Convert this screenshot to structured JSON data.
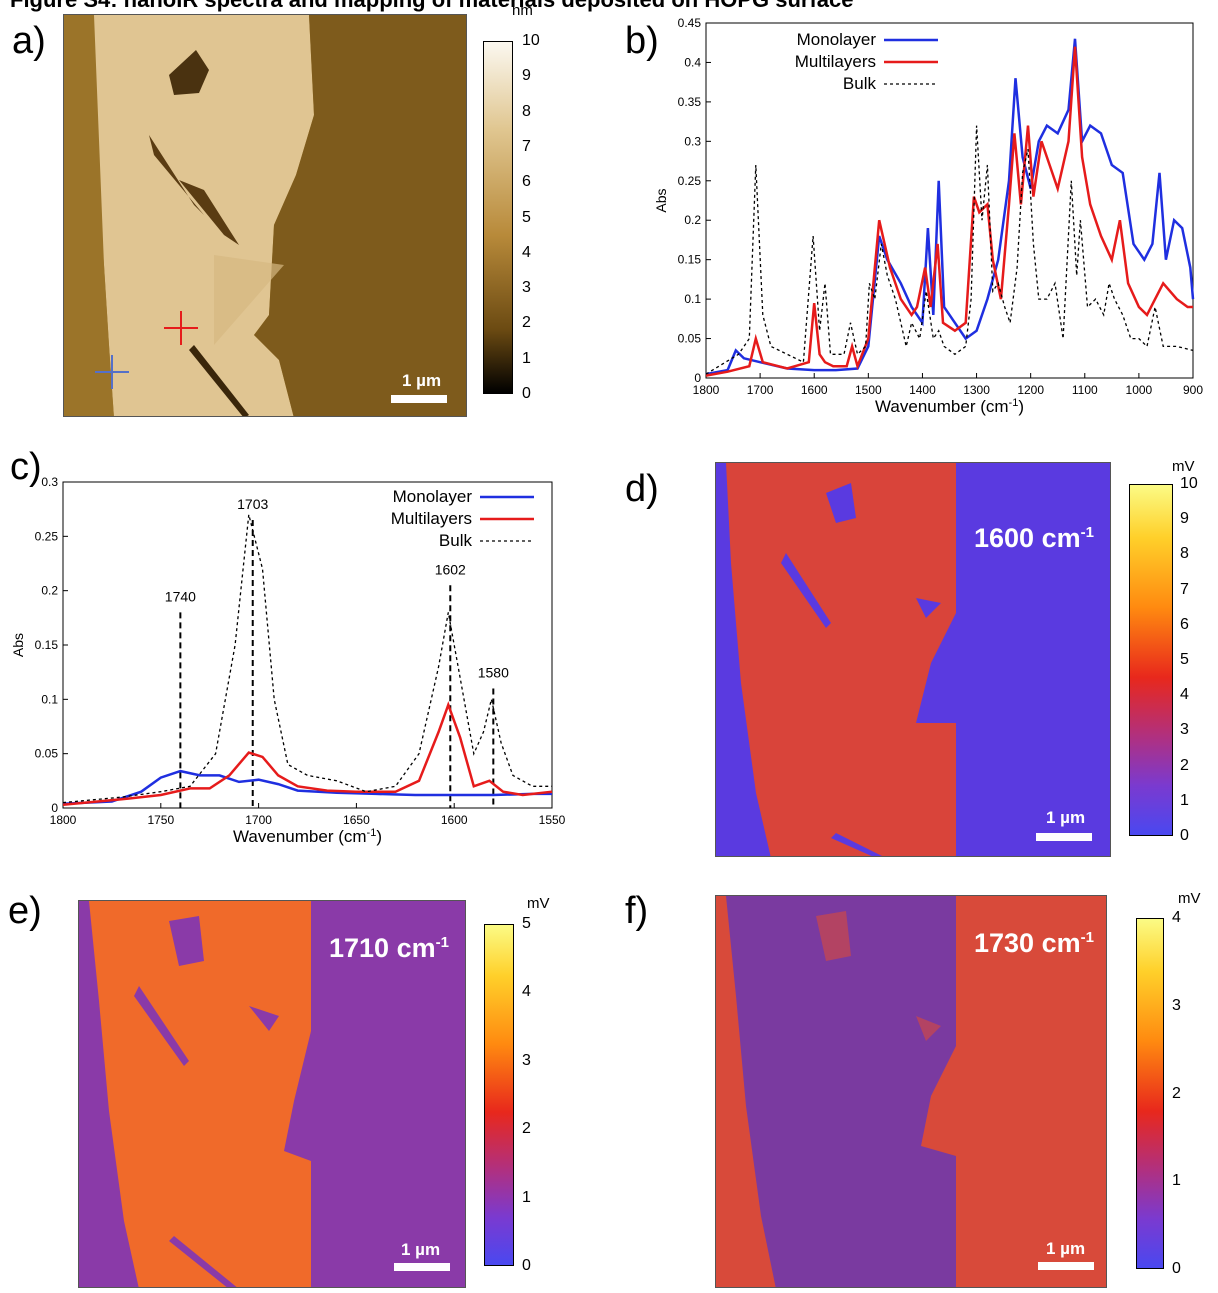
{
  "caption": "Figure S4: nanoIR spectra and mapping of materials deposited on HOPG surface",
  "panels": {
    "a": {
      "label": "a)",
      "scalebar": "1 µm",
      "colorbar_unit": "nm",
      "colorbar_ticks": [
        "10",
        "9",
        "8",
        "7",
        "6",
        "5",
        "4",
        "3",
        "2",
        "1",
        "0"
      ],
      "colors": {
        "high": "#f8f4ea",
        "mid": "#b88a3a",
        "low": "#000000"
      }
    },
    "d": {
      "label": "d)",
      "wavenumber": "1600 cm",
      "sup": "-1",
      "scalebar": "1 µm",
      "colorbar_unit": "mV",
      "colorbar_ticks": [
        "10",
        "9",
        "8",
        "7",
        "6",
        "5",
        "4",
        "3",
        "2",
        "1",
        "0"
      ]
    },
    "e": {
      "label": "e)",
      "wavenumber": "1710 cm",
      "sup": "-1",
      "scalebar": "1 µm",
      "colorbar_unit": "mV",
      "colorbar_ticks": [
        "5",
        "4",
        "3",
        "2",
        "1",
        "0"
      ]
    },
    "f": {
      "label": "f)",
      "wavenumber": "1730 cm",
      "sup": "-1",
      "scalebar": "1 µm",
      "colorbar_unit": "mV",
      "colorbar_ticks": [
        "4",
        "3",
        "2",
        "1",
        "0"
      ]
    }
  },
  "chart_data": [
    {
      "panel": "b",
      "label": "b)",
      "type": "line",
      "xlabel": "Wavenumber (cm",
      "xlabel_sup": "-1",
      "xlabel_end": ")",
      "ylabel": "Abs",
      "xlim": [
        1800,
        900
      ],
      "ylim": [
        0,
        0.45
      ],
      "xticks": [
        "1800",
        "1700",
        "1600",
        "1500",
        "1400",
        "1300",
        "1200",
        "1100",
        "1000",
        "900"
      ],
      "yticks": [
        "0",
        "0.05",
        "0.1",
        "0.15",
        "0.2",
        "0.25",
        "0.3",
        "0.35",
        "0.4",
        "0.45"
      ],
      "legend": "top-left",
      "series": [
        {
          "name": "Monolayer",
          "color": "#1f2fe0",
          "dash": "",
          "points": [
            [
              1800,
              0.005
            ],
            [
              1760,
              0.01
            ],
            [
              1745,
              0.035
            ],
            [
              1730,
              0.025
            ],
            [
              1700,
              0.02
            ],
            [
              1650,
              0.012
            ],
            [
              1600,
              0.01
            ],
            [
              1560,
              0.01
            ],
            [
              1520,
              0.012
            ],
            [
              1500,
              0.04
            ],
            [
              1480,
              0.18
            ],
            [
              1465,
              0.15
            ],
            [
              1440,
              0.12
            ],
            [
              1420,
              0.09
            ],
            [
              1400,
              0.07
            ],
            [
              1390,
              0.19
            ],
            [
              1380,
              0.08
            ],
            [
              1370,
              0.25
            ],
            [
              1360,
              0.09
            ],
            [
              1340,
              0.07
            ],
            [
              1320,
              0.05
            ],
            [
              1300,
              0.06
            ],
            [
              1280,
              0.1
            ],
            [
              1260,
              0.15
            ],
            [
              1240,
              0.25
            ],
            [
              1228,
              0.38
            ],
            [
              1215,
              0.28
            ],
            [
              1200,
              0.24
            ],
            [
              1185,
              0.3
            ],
            [
              1170,
              0.32
            ],
            [
              1150,
              0.31
            ],
            [
              1130,
              0.34
            ],
            [
              1118,
              0.43
            ],
            [
              1105,
              0.3
            ],
            [
              1090,
              0.32
            ],
            [
              1070,
              0.31
            ],
            [
              1050,
              0.27
            ],
            [
              1030,
              0.26
            ],
            [
              1010,
              0.17
            ],
            [
              990,
              0.15
            ],
            [
              975,
              0.17
            ],
            [
              962,
              0.26
            ],
            [
              950,
              0.15
            ],
            [
              935,
              0.2
            ],
            [
              920,
              0.19
            ],
            [
              905,
              0.14
            ],
            [
              900,
              0.1
            ]
          ]
        },
        {
          "name": "Multilayers",
          "color": "#e61b1b",
          "dash": "",
          "points": [
            [
              1800,
              0.003
            ],
            [
              1760,
              0.008
            ],
            [
              1720,
              0.015
            ],
            [
              1708,
              0.05
            ],
            [
              1695,
              0.02
            ],
            [
              1650,
              0.012
            ],
            [
              1610,
              0.02
            ],
            [
              1600,
              0.095
            ],
            [
              1590,
              0.03
            ],
            [
              1580,
              0.02
            ],
            [
              1565,
              0.015
            ],
            [
              1540,
              0.015
            ],
            [
              1530,
              0.04
            ],
            [
              1520,
              0.015
            ],
            [
              1500,
              0.05
            ],
            [
              1480,
              0.2
            ],
            [
              1460,
              0.14
            ],
            [
              1440,
              0.1
            ],
            [
              1420,
              0.08
            ],
            [
              1410,
              0.09
            ],
            [
              1395,
              0.14
            ],
            [
              1385,
              0.09
            ],
            [
              1372,
              0.17
            ],
            [
              1362,
              0.07
            ],
            [
              1340,
              0.06
            ],
            [
              1320,
              0.07
            ],
            [
              1305,
              0.23
            ],
            [
              1295,
              0.21
            ],
            [
              1280,
              0.22
            ],
            [
              1270,
              0.15
            ],
            [
              1255,
              0.1
            ],
            [
              1240,
              0.22
            ],
            [
              1230,
              0.31
            ],
            [
              1218,
              0.22
            ],
            [
              1205,
              0.32
            ],
            [
              1195,
              0.23
            ],
            [
              1180,
              0.3
            ],
            [
              1165,
              0.27
            ],
            [
              1150,
              0.24
            ],
            [
              1130,
              0.3
            ],
            [
              1118,
              0.42
            ],
            [
              1105,
              0.28
            ],
            [
              1090,
              0.22
            ],
            [
              1070,
              0.18
            ],
            [
              1050,
              0.15
            ],
            [
              1035,
              0.2
            ],
            [
              1020,
              0.12
            ],
            [
              1000,
              0.09
            ],
            [
              985,
              0.08
            ],
            [
              970,
              0.1
            ],
            [
              955,
              0.12
            ],
            [
              930,
              0.1
            ],
            [
              910,
              0.09
            ],
            [
              900,
              0.09
            ]
          ]
        },
        {
          "name": "Bulk",
          "color": "#000000",
          "dash": "3,3",
          "points": [
            [
              1800,
              0.005
            ],
            [
              1740,
              0.03
            ],
            [
              1720,
              0.05
            ],
            [
              1708,
              0.27
            ],
            [
              1695,
              0.08
            ],
            [
              1680,
              0.04
            ],
            [
              1650,
              0.03
            ],
            [
              1620,
              0.02
            ],
            [
              1602,
              0.18
            ],
            [
              1590,
              0.06
            ],
            [
              1580,
              0.12
            ],
            [
              1570,
              0.03
            ],
            [
              1545,
              0.03
            ],
            [
              1533,
              0.07
            ],
            [
              1520,
              0.03
            ],
            [
              1505,
              0.04
            ],
            [
              1498,
              0.12
            ],
            [
              1488,
              0.1
            ],
            [
              1476,
              0.17
            ],
            [
              1465,
              0.13
            ],
            [
              1450,
              0.1
            ],
            [
              1430,
              0.04
            ],
            [
              1420,
              0.07
            ],
            [
              1405,
              0.05
            ],
            [
              1393,
              0.11
            ],
            [
              1380,
              0.05
            ],
            [
              1370,
              0.06
            ],
            [
              1360,
              0.04
            ],
            [
              1340,
              0.03
            ],
            [
              1320,
              0.04
            ],
            [
              1310,
              0.1
            ],
            [
              1300,
              0.32
            ],
            [
              1290,
              0.2
            ],
            [
              1280,
              0.27
            ],
            [
              1270,
              0.11
            ],
            [
              1260,
              0.12
            ],
            [
              1248,
              0.09
            ],
            [
              1238,
              0.07
            ],
            [
              1225,
              0.14
            ],
            [
              1215,
              0.26
            ],
            [
              1205,
              0.29
            ],
            [
              1195,
              0.17
            ],
            [
              1185,
              0.1
            ],
            [
              1170,
              0.1
            ],
            [
              1155,
              0.12
            ],
            [
              1140,
              0.05
            ],
            [
              1125,
              0.25
            ],
            [
              1115,
              0.13
            ],
            [
              1108,
              0.2
            ],
            [
              1095,
              0.09
            ],
            [
              1080,
              0.1
            ],
            [
              1065,
              0.08
            ],
            [
              1055,
              0.12
            ],
            [
              1045,
              0.1
            ],
            [
              1030,
              0.08
            ],
            [
              1015,
              0.05
            ],
            [
              1000,
              0.05
            ],
            [
              985,
              0.04
            ],
            [
              970,
              0.09
            ],
            [
              955,
              0.04
            ],
            [
              930,
              0.04
            ],
            [
              900,
              0.035
            ]
          ]
        }
      ]
    },
    {
      "panel": "c",
      "label": "c)",
      "type": "line",
      "xlabel": "Wavenumber (cm",
      "xlabel_sup": "-1",
      "xlabel_end": ")",
      "ylabel": "Abs",
      "xlim": [
        1800,
        1550
      ],
      "ylim": [
        0,
        0.3
      ],
      "xticks": [
        "1800",
        "1750",
        "1700",
        "1650",
        "1600",
        "1550"
      ],
      "yticks": [
        "0",
        "0.05",
        "0.1",
        "0.15",
        "0.2",
        "0.25",
        "0.3"
      ],
      "legend": "top-right",
      "annotations": [
        {
          "x": 1740,
          "text": "1740",
          "y": 0.19
        },
        {
          "x": 1703,
          "text": "1703",
          "y": 0.275
        },
        {
          "x": 1602,
          "text": "1602",
          "y": 0.215
        },
        {
          "x": 1580,
          "text": "1580",
          "y": 0.12
        }
      ],
      "series": [
        {
          "name": "Monolayer",
          "color": "#1f2fe0",
          "dash": "",
          "points": [
            [
              1800,
              0.004
            ],
            [
              1775,
              0.006
            ],
            [
              1760,
              0.015
            ],
            [
              1750,
              0.028
            ],
            [
              1740,
              0.034
            ],
            [
              1730,
              0.03
            ],
            [
              1720,
              0.03
            ],
            [
              1710,
              0.024
            ],
            [
              1700,
              0.026
            ],
            [
              1690,
              0.022
            ],
            [
              1680,
              0.016
            ],
            [
              1660,
              0.014
            ],
            [
              1640,
              0.013
            ],
            [
              1620,
              0.012
            ],
            [
              1600,
              0.012
            ],
            [
              1580,
              0.012
            ],
            [
              1560,
              0.013
            ],
            [
              1550,
              0.013
            ]
          ]
        },
        {
          "name": "Multilayers",
          "color": "#e61b1b",
          "dash": "",
          "points": [
            [
              1800,
              0.003
            ],
            [
              1770,
              0.008
            ],
            [
              1750,
              0.012
            ],
            [
              1735,
              0.018
            ],
            [
              1725,
              0.018
            ],
            [
              1715,
              0.03
            ],
            [
              1705,
              0.051
            ],
            [
              1698,
              0.047
            ],
            [
              1690,
              0.03
            ],
            [
              1680,
              0.02
            ],
            [
              1665,
              0.016
            ],
            [
              1650,
              0.015
            ],
            [
              1630,
              0.015
            ],
            [
              1618,
              0.025
            ],
            [
              1608,
              0.07
            ],
            [
              1603,
              0.095
            ],
            [
              1597,
              0.065
            ],
            [
              1590,
              0.02
            ],
            [
              1582,
              0.025
            ],
            [
              1575,
              0.015
            ],
            [
              1565,
              0.012
            ],
            [
              1550,
              0.015
            ]
          ]
        },
        {
          "name": "Bulk",
          "color": "#000000",
          "dash": "3,3",
          "points": [
            [
              1800,
              0.005
            ],
            [
              1770,
              0.01
            ],
            [
              1750,
              0.015
            ],
            [
              1735,
              0.02
            ],
            [
              1722,
              0.05
            ],
            [
              1712,
              0.15
            ],
            [
              1705,
              0.27
            ],
            [
              1698,
              0.22
            ],
            [
              1692,
              0.1
            ],
            [
              1685,
              0.04
            ],
            [
              1675,
              0.03
            ],
            [
              1660,
              0.025
            ],
            [
              1645,
              0.015
            ],
            [
              1630,
              0.02
            ],
            [
              1618,
              0.05
            ],
            [
              1608,
              0.13
            ],
            [
              1603,
              0.18
            ],
            [
              1597,
              0.12
            ],
            [
              1590,
              0.05
            ],
            [
              1585,
              0.07
            ],
            [
              1581,
              0.1
            ],
            [
              1576,
              0.06
            ],
            [
              1570,
              0.03
            ],
            [
              1560,
              0.02
            ],
            [
              1550,
              0.02
            ]
          ]
        }
      ]
    }
  ]
}
